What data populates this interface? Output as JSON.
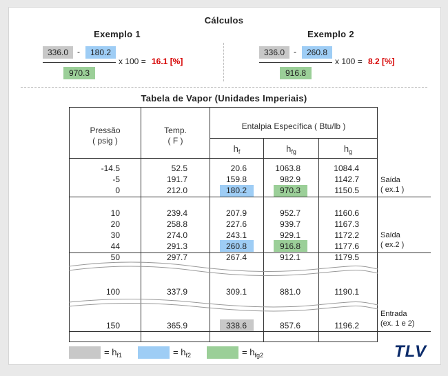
{
  "calc_title": "Cálculos",
  "ex1": {
    "title": "Exemplo 1",
    "a": "336.0",
    "op": "-",
    "b": "180.2",
    "den": "970.3",
    "mult": "x 100 =",
    "result": "16.1 [%]"
  },
  "ex2": {
    "title": "Exemplo 2",
    "a": "336.0",
    "op": "-",
    "b": "260.8",
    "den": "916.8",
    "mult": "x 100 =",
    "result": "8.2 [%]"
  },
  "table_title": "Tabela de Vapor (Unidades Imperiais)",
  "headers": {
    "pressure": "Pressão",
    "pressure_unit": "( psig )",
    "temp": "Temp.",
    "temp_unit": "( F )",
    "enthalpy": "Entalpia Específica ( Btu/lb )",
    "hf_base": "h",
    "hf_sub": "f",
    "hfg_base": "h",
    "hfg_sub": "fg",
    "hg_base": "h",
    "hg_sub": "g"
  },
  "rows": [
    [
      "-14.5",
      "52.5",
      "20.6",
      "1063.8",
      "1084.4"
    ],
    [
      "-5",
      "191.7",
      "159.8",
      "982.9",
      "1142.7"
    ],
    [
      "0",
      "212.0",
      "180.2",
      "970.3",
      "1150.5"
    ],
    [
      "10",
      "239.4",
      "207.9",
      "952.7",
      "1160.6"
    ],
    [
      "20",
      "258.8",
      "227.6",
      "939.7",
      "1167.3"
    ],
    [
      "30",
      "274.0",
      "243.1",
      "929.1",
      "1172.2"
    ],
    [
      "44",
      "291.3",
      "260.8",
      "916.8",
      "1177.6"
    ],
    [
      "50",
      "297.7",
      "267.4",
      "912.1",
      "1179.5"
    ],
    [
      "100",
      "337.9",
      "309.1",
      "881.0",
      "1190.1"
    ],
    [
      "150",
      "365.9",
      "338.6",
      "857.6",
      "1196.2"
    ]
  ],
  "side_labels": {
    "saida1_a": "Saída",
    "saida1_b": "( ex.1 )",
    "saida2_a": "Saída",
    "saida2_b": "( ex.2 )",
    "entrada_a": "Entrada",
    "entrada_b": "(ex. 1 e 2)"
  },
  "legend": {
    "eq": "= h",
    "f1": "f1",
    "f2": "f2",
    "fg2": "fg2"
  },
  "logo": "TLV",
  "colors": {
    "hf1": "#c8c8c8",
    "hf2": "#9ecdf5",
    "hfg2": "#9bcf98",
    "result": "#d60000",
    "logo": "#0b2b6a"
  }
}
